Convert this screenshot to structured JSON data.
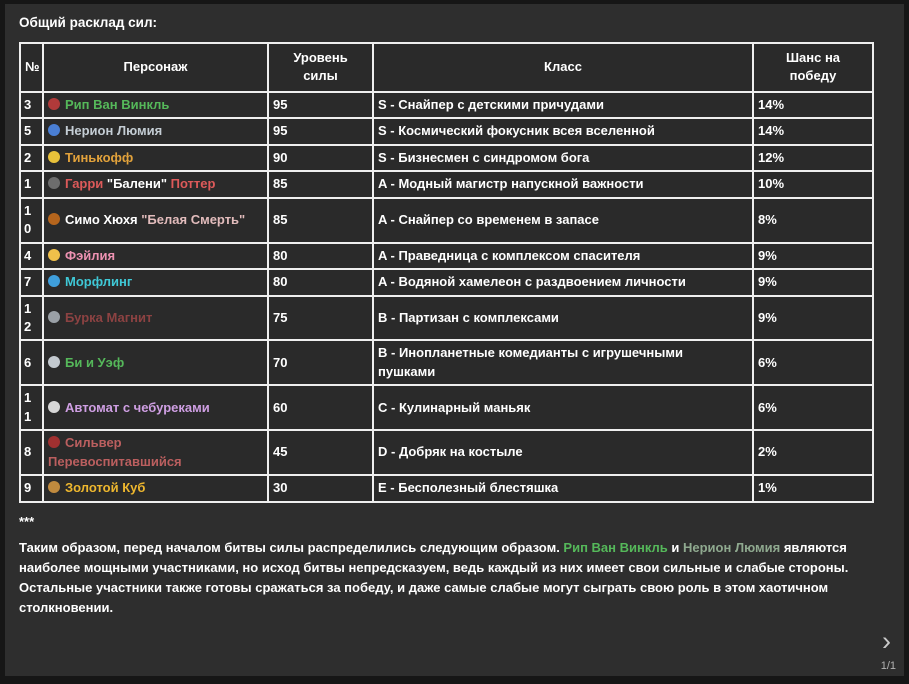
{
  "page": {
    "title": "Общий расклад сил:",
    "separator": "***",
    "pagination": "1/1",
    "next_icon": "›"
  },
  "colors": {
    "background": "#2e2e2e",
    "table_border": "#efefef",
    "text": "#ffffff"
  },
  "table": {
    "headers": [
      "№",
      "Персонаж",
      "Уровень силы",
      "Класс",
      "Шанс на победу"
    ],
    "rows": [
      {
        "num": "3",
        "icon": {
          "name": "target-icon",
          "glyph": "🎯",
          "color": "#b03a3a"
        },
        "name_segments": [
          {
            "text": "Рип Ван Винкль",
            "color": "#55b85a"
          }
        ],
        "power": "95",
        "class": "S - Снайпер с детскими причудами",
        "chance": "14%"
      },
      {
        "num": "5",
        "icon": {
          "name": "cyclone-icon",
          "glyph": "🌀",
          "color": "#4a7fd4"
        },
        "name_segments": [
          {
            "text": "Нерион Люмия",
            "color": "#c4cdd4"
          }
        ],
        "power": "95",
        "class": "S - Космический фокусник всея вселенной",
        "chance": "14%"
      },
      {
        "num": "2",
        "icon": {
          "name": "bank-icon",
          "glyph": "🏦",
          "color": "#e8c13a"
        },
        "name_segments": [
          {
            "text": "Тинькофф",
            "color": "#e2a23b"
          }
        ],
        "power": "90",
        "class": "S - Бизнесмен с синдромом бога",
        "chance": "12%"
      },
      {
        "num": "1",
        "icon": {
          "name": "suit-man-icon",
          "glyph": "🕴",
          "color": "#6d6d6d"
        },
        "name_segments": [
          {
            "text": "Гарри ",
            "color": "#dd5a5a"
          },
          {
            "text": "\"Балени\"",
            "color": "#ffffff"
          },
          {
            "text": " Поттер",
            "color": "#dd5a5a"
          }
        ],
        "power": "85",
        "class": "A - Модный магистр напускной важности",
        "chance": "10%"
      },
      {
        "num": "10",
        "icon": {
          "name": "pistol-icon",
          "glyph": "🔫",
          "color": "#b5651d"
        },
        "name_segments": [
          {
            "text": "Симо Хюхя ",
            "color": "#ffffff"
          },
          {
            "text": "\"Белая Смерть\"",
            "color": "#e2bcbc"
          }
        ],
        "power": "85",
        "class": "A - Снайпер со временем в запасе",
        "chance": "8%"
      },
      {
        "num": "4",
        "icon": {
          "name": "halo-face-icon",
          "glyph": "😇",
          "color": "#f0c04a"
        },
        "name_segments": [
          {
            "text": "Фэйлия",
            "color": "#ee92b2"
          }
        ],
        "power": "80",
        "class": "A - Праведница с комплексом спасителя",
        "chance": "9%"
      },
      {
        "num": "7",
        "icon": {
          "name": "wave-icon",
          "glyph": "🌊",
          "color": "#3f9fdc"
        },
        "name_segments": [
          {
            "text": "Морфлинг",
            "color": "#3fc8d6"
          }
        ],
        "power": "80",
        "class": "A - Водяной хамелеон с раздвоением личности",
        "chance": "9%"
      },
      {
        "num": "12",
        "icon": {
          "name": "wrench-icon",
          "glyph": "🔧",
          "color": "#9aa0a6"
        },
        "name_segments": [
          {
            "text": "Бурка Магнит",
            "color": "#8c4242"
          }
        ],
        "power": "75",
        "class": "B - Партизан с комплексами",
        "chance": "9%"
      },
      {
        "num": "6",
        "icon": {
          "name": "rocket-icon",
          "glyph": "🚀",
          "color": "#c3c9cf"
        },
        "name_segments": [
          {
            "text": "Би и Уэф",
            "color": "#55b85a"
          }
        ],
        "power": "70",
        "class": "B - Инопланетные комедианты с игрушечными пушками",
        "chance": "6%"
      },
      {
        "num": "11",
        "icon": {
          "name": "robot-icon",
          "glyph": "🤖",
          "color": "#d6d6d6"
        },
        "name_segments": [
          {
            "text": "Автомат с чебуреками",
            "color": "#cf9fe3"
          }
        ],
        "power": "60",
        "class": "C - Кулинарный маньяк",
        "chance": "6%"
      },
      {
        "num": "8",
        "icon": {
          "name": "parrot-icon",
          "glyph": "🦜",
          "color": "#a03030"
        },
        "name_segments": [
          {
            "text": "Сильвер Перевоспитавшийся",
            "color": "#bb5f5f"
          }
        ],
        "power": "45",
        "class": "D - Добряк на костыле",
        "chance": "2%"
      },
      {
        "num": "9",
        "icon": {
          "name": "package-icon",
          "glyph": "📦",
          "color": "#c08a3e"
        },
        "name_segments": [
          {
            "text": "Золотой Куб",
            "color": "#eeb72e"
          }
        ],
        "power": "30",
        "class": "E - Бесполезный блестяшка",
        "chance": "1%"
      }
    ]
  },
  "summary": {
    "segments": [
      {
        "text": "Таким образом, перед началом битвы силы распределились следующим образом. ",
        "color": ""
      },
      {
        "text": "Рип Ван Винкль",
        "color": "#55b85a"
      },
      {
        "text": " и ",
        "color": ""
      },
      {
        "text": "Нерион Люмия",
        "color": "#8fa98f"
      },
      {
        "text": " являются наиболее мощными участниками, но исход битвы непредсказуем, ведь каждый из них имеет свои сильные и слабые стороны. Остальные участники также готовы сражаться за победу, и даже самые слабые могут сыграть свою роль в этом хаотичном столкновении.",
        "color": ""
      }
    ]
  }
}
